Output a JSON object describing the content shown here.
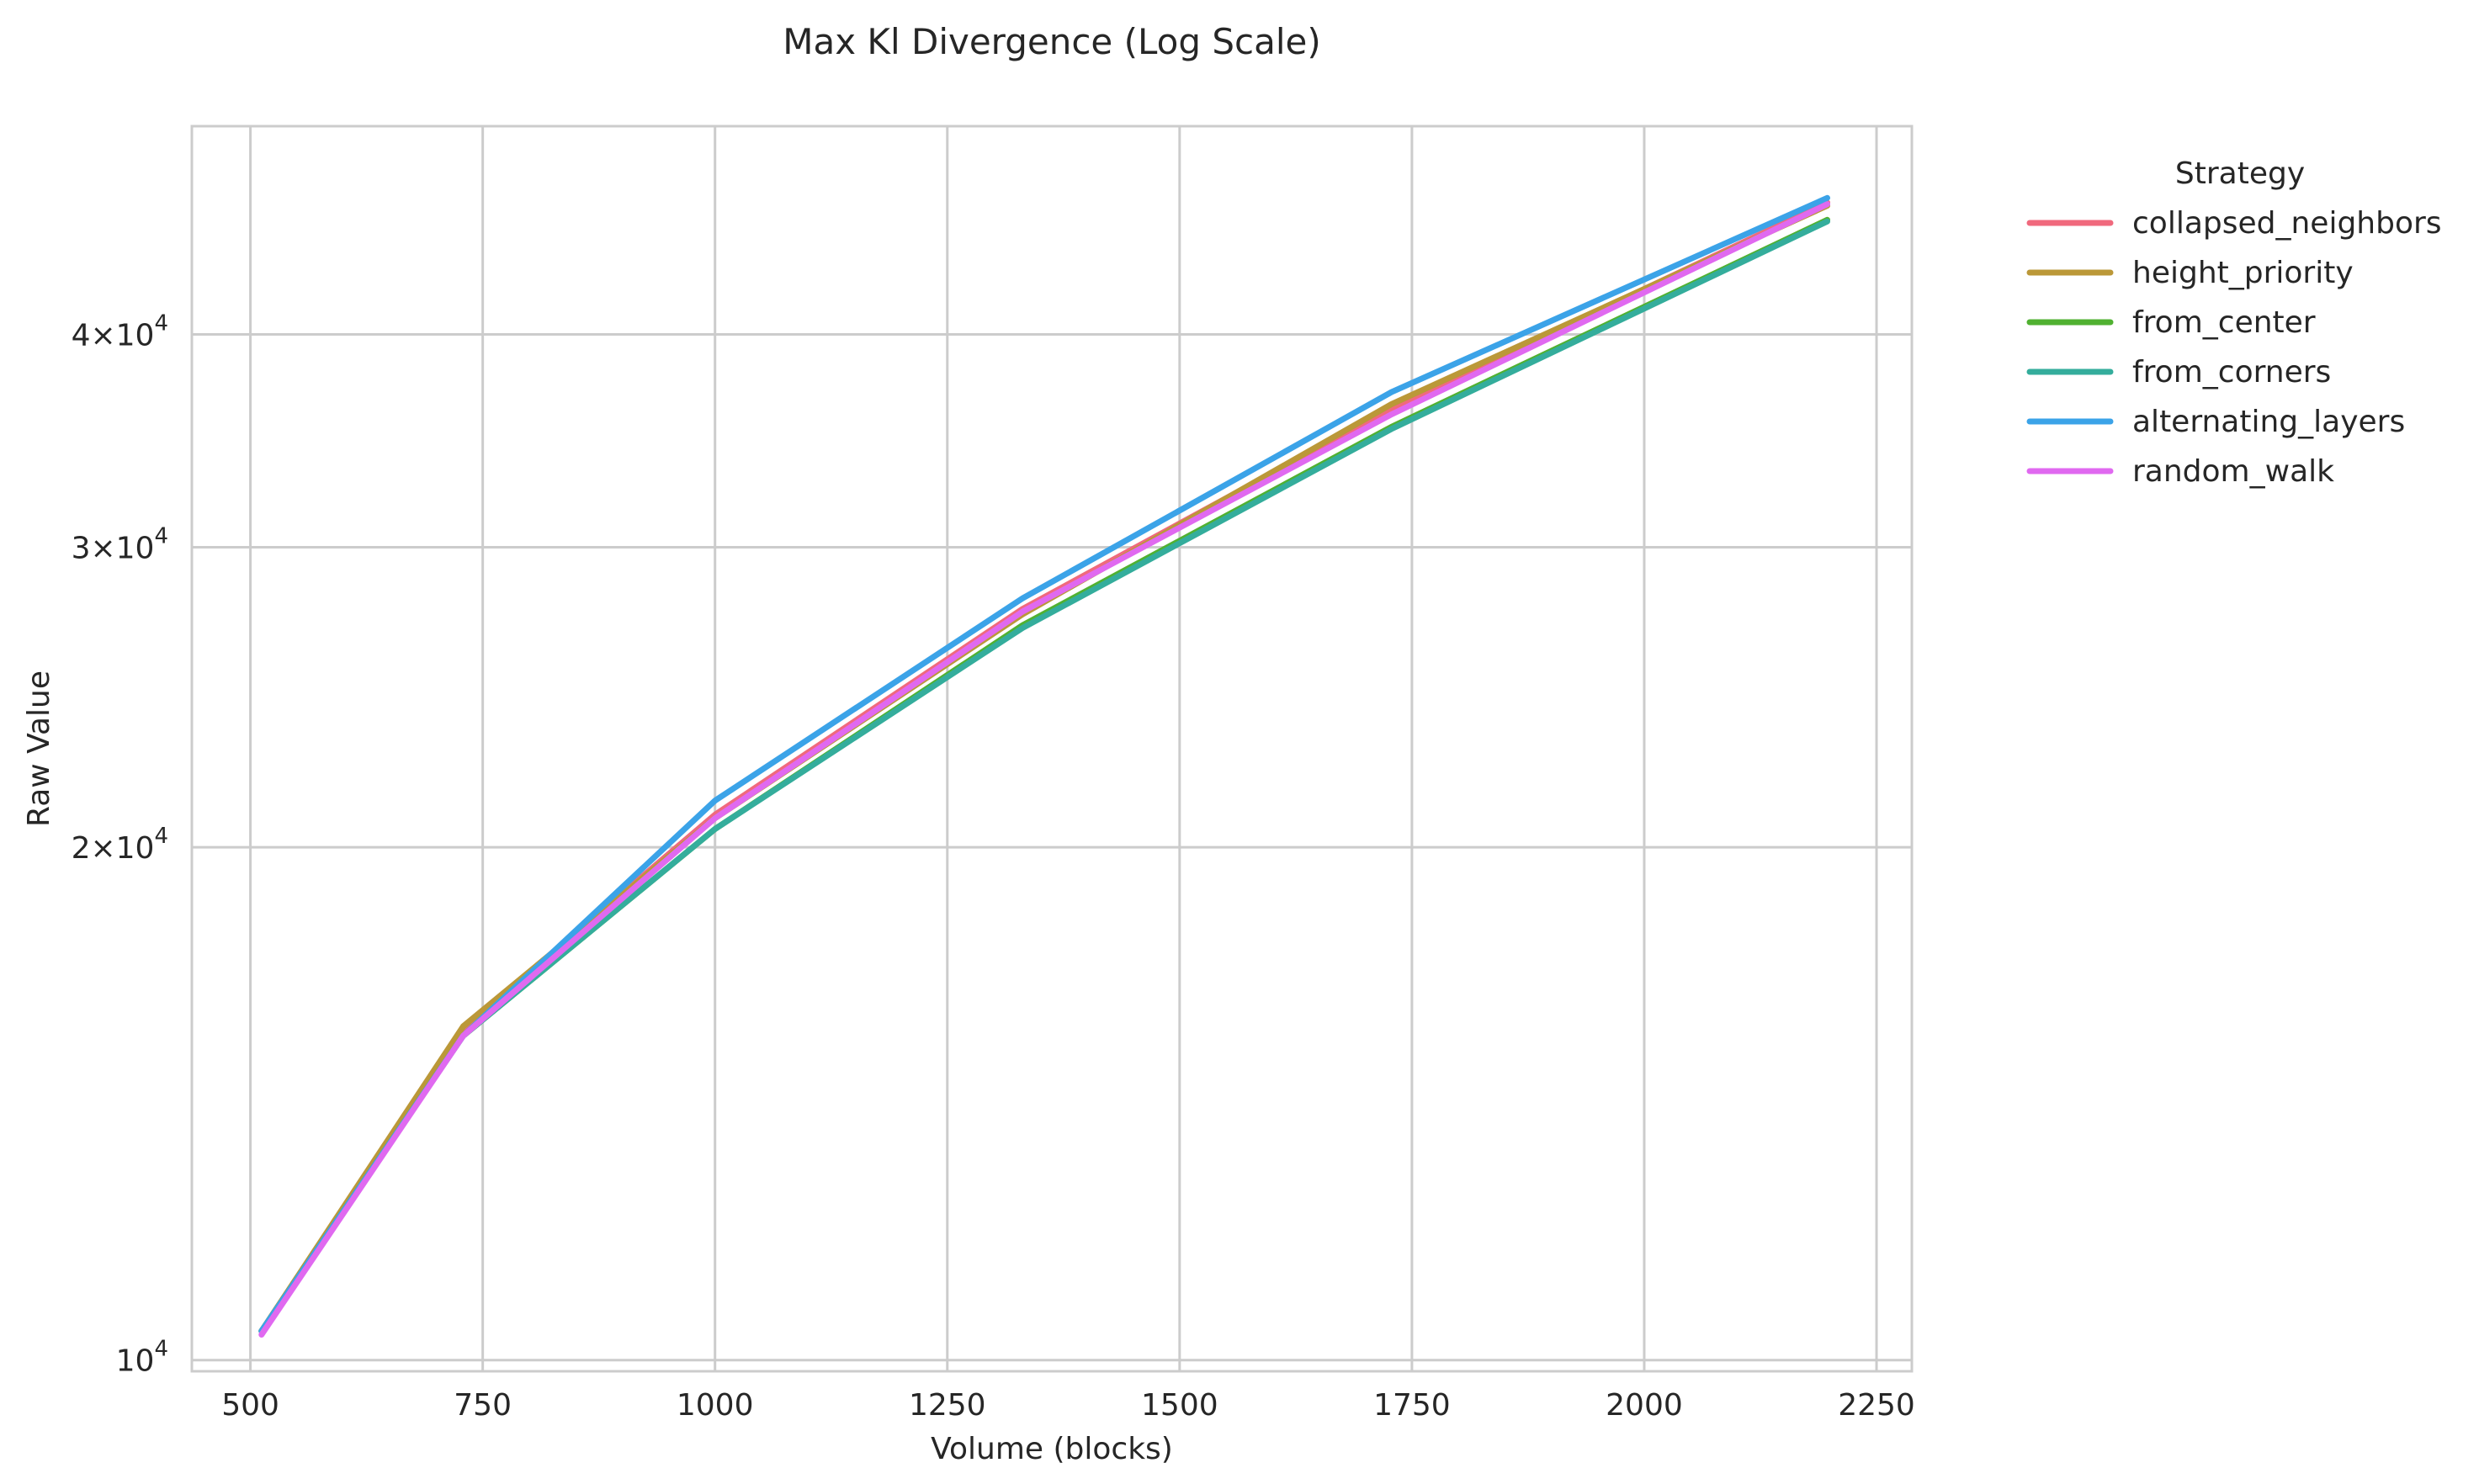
{
  "chart_data": {
    "type": "line",
    "title": "Max Kl Divergence (Log Scale)",
    "xlabel": "Volume (blocks)",
    "ylabel": "Raw Value",
    "xscale": "linear",
    "yscale": "log",
    "xlim": [
      437,
      2288
    ],
    "ylim": [
      9850,
      53000
    ],
    "xticks": [
      500,
      750,
      1000,
      1250,
      1500,
      1750,
      2000,
      2250
    ],
    "yticks": [
      {
        "value": 10000,
        "base": "10",
        "exp": "4",
        "mantissa": ""
      },
      {
        "value": 20000,
        "base": "10",
        "exp": "4",
        "mantissa": "2"
      },
      {
        "value": 30000,
        "base": "10",
        "exp": "4",
        "mantissa": "3"
      },
      {
        "value": 40000,
        "base": "10",
        "exp": "4",
        "mantissa": "4"
      }
    ],
    "grid": "vertical",
    "legend": {
      "title": "Strategy",
      "placement": "outside-right"
    },
    "x": [
      512,
      729,
      1000,
      1331,
      1728,
      2197
    ],
    "series": [
      {
        "name": "collapsed_neighbors",
        "color": "#f0697d",
        "values": [
          10400,
          15650,
          20900,
          27600,
          36200,
          47800
        ]
      },
      {
        "name": "height_priority",
        "color": "#bb9838",
        "values": [
          10400,
          15700,
          20800,
          27400,
          36400,
          47600
        ]
      },
      {
        "name": "from_center",
        "color": "#50b131",
        "values": [
          10400,
          15500,
          20500,
          27000,
          35300,
          46700
        ]
      },
      {
        "name": "from_corners",
        "color": "#34ad9c",
        "values": [
          10400,
          15500,
          20500,
          26900,
          35200,
          46600
        ]
      },
      {
        "name": "alternating_layers",
        "color": "#3ba3e8",
        "values": [
          10400,
          15500,
          21300,
          28000,
          37000,
          48100
        ]
      },
      {
        "name": "random_walk",
        "color": "#e069f0",
        "values": [
          10350,
          15500,
          20800,
          27500,
          35900,
          47700
        ]
      }
    ]
  }
}
